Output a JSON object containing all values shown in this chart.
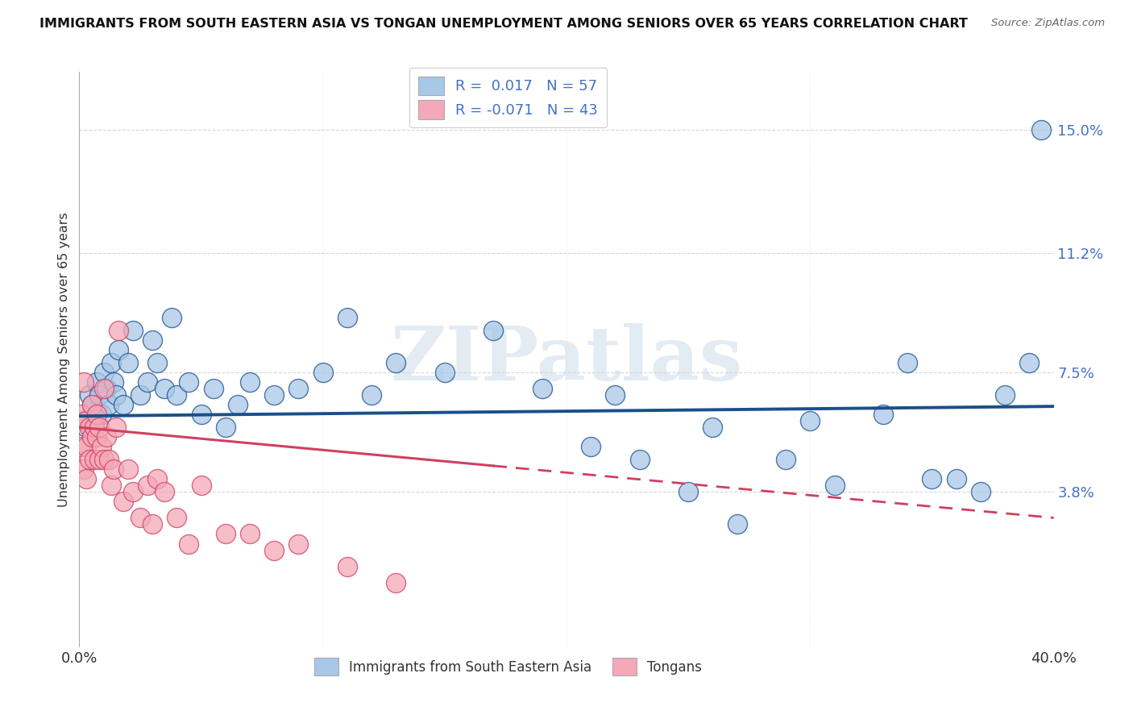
{
  "title": "IMMIGRANTS FROM SOUTH EASTERN ASIA VS TONGAN UNEMPLOYMENT AMONG SENIORS OVER 65 YEARS CORRELATION CHART",
  "source": "Source: ZipAtlas.com",
  "ylabel": "Unemployment Among Seniors over 65 years",
  "xlim": [
    0.0,
    0.4
  ],
  "ylim": [
    -0.01,
    0.168
  ],
  "ytick_positions": [
    0.038,
    0.075,
    0.112,
    0.15
  ],
  "ytick_labels": [
    "3.8%",
    "7.5%",
    "11.2%",
    "15.0%"
  ],
  "blue_r": "0.017",
  "blue_n": "57",
  "pink_r": "-0.071",
  "pink_n": "43",
  "blue_color": "#a8c8e8",
  "pink_color": "#f4a8b8",
  "blue_line_color": "#1a4f8a",
  "pink_line_color": "#d04060",
  "legend_label_blue": "Immigrants from South Eastern Asia",
  "legend_label_pink": "Tongans",
  "watermark": "ZIPatlas",
  "blue_scatter_x": [
    0.002,
    0.003,
    0.004,
    0.005,
    0.006,
    0.007,
    0.008,
    0.009,
    0.01,
    0.011,
    0.012,
    0.013,
    0.014,
    0.015,
    0.016,
    0.018,
    0.02,
    0.022,
    0.025,
    0.028,
    0.03,
    0.032,
    0.035,
    0.038,
    0.04,
    0.045,
    0.05,
    0.055,
    0.06,
    0.065,
    0.07,
    0.08,
    0.09,
    0.1,
    0.11,
    0.12,
    0.13,
    0.15,
    0.17,
    0.19,
    0.21,
    0.23,
    0.25,
    0.27,
    0.29,
    0.31,
    0.33,
    0.35,
    0.37,
    0.38,
    0.39,
    0.395,
    0.22,
    0.26,
    0.3,
    0.34,
    0.36
  ],
  "blue_scatter_y": [
    0.06,
    0.058,
    0.068,
    0.065,
    0.06,
    0.072,
    0.068,
    0.062,
    0.075,
    0.07,
    0.065,
    0.078,
    0.072,
    0.068,
    0.082,
    0.065,
    0.078,
    0.088,
    0.068,
    0.072,
    0.085,
    0.078,
    0.07,
    0.092,
    0.068,
    0.072,
    0.062,
    0.07,
    0.058,
    0.065,
    0.072,
    0.068,
    0.07,
    0.075,
    0.092,
    0.068,
    0.078,
    0.075,
    0.088,
    0.07,
    0.052,
    0.048,
    0.038,
    0.028,
    0.048,
    0.04,
    0.062,
    0.042,
    0.038,
    0.068,
    0.078,
    0.15,
    0.068,
    0.058,
    0.06,
    0.078,
    0.042
  ],
  "pink_scatter_x": [
    0.001,
    0.001,
    0.002,
    0.002,
    0.003,
    0.003,
    0.003,
    0.004,
    0.004,
    0.005,
    0.005,
    0.006,
    0.006,
    0.007,
    0.007,
    0.008,
    0.008,
    0.009,
    0.01,
    0.01,
    0.011,
    0.012,
    0.013,
    0.014,
    0.015,
    0.016,
    0.018,
    0.02,
    0.022,
    0.025,
    0.028,
    0.03,
    0.032,
    0.035,
    0.04,
    0.045,
    0.05,
    0.06,
    0.07,
    0.08,
    0.09,
    0.11,
    0.13
  ],
  "pink_scatter_y": [
    0.062,
    0.052,
    0.072,
    0.045,
    0.06,
    0.052,
    0.042,
    0.058,
    0.048,
    0.055,
    0.065,
    0.058,
    0.048,
    0.055,
    0.062,
    0.048,
    0.058,
    0.052,
    0.07,
    0.048,
    0.055,
    0.048,
    0.04,
    0.045,
    0.058,
    0.088,
    0.035,
    0.045,
    0.038,
    0.03,
    0.04,
    0.028,
    0.042,
    0.038,
    0.03,
    0.022,
    0.04,
    0.025,
    0.025,
    0.02,
    0.022,
    0.015,
    0.01
  ],
  "blue_trend_x0": 0.0,
  "blue_trend_x1": 0.4,
  "blue_trend_y0": 0.0615,
  "blue_trend_y1": 0.0645,
  "pink_trend_x0": 0.0,
  "pink_trend_x1": 0.4,
  "pink_trend_y0": 0.058,
  "pink_trend_y1": 0.03
}
